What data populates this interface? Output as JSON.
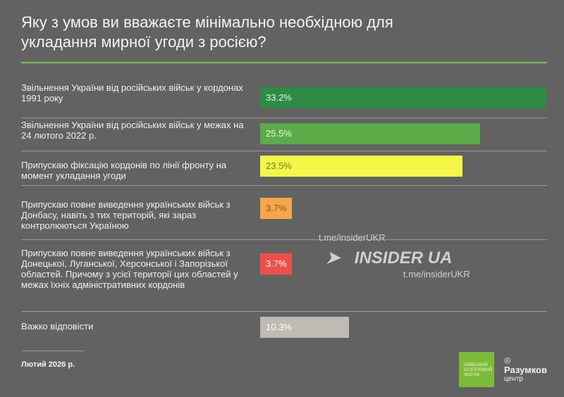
{
  "chart_data": {
    "type": "bar",
    "orientation": "horizontal",
    "title": "Яку з умов ви вважаєте мінімально необхідною для укладання мирної угоди з росією?",
    "categories": [
      "Звільнення України від російських військ у кордонах 1991 року",
      "Звільнення України від російських військ у межах на 24 лютого 2022 р.",
      "Припускаю фіксацію кордонів по лінії фронту на момент укладання угоди",
      "Припускаю повне виведення українських військ з Донбасу, навіть з тих територій, які зараз контролюються Україною",
      "Припускаю повне виведення українських військ з Донецької, Луганської, Херсонської і Запорізької областей. Причому з усієї території цих областей у межах їхніх адміністративних кордонів",
      "Важко відповісти"
    ],
    "values": [
      33.2,
      25.5,
      23.5,
      3.7,
      3.7,
      10.3
    ],
    "value_labels": [
      "33.2%",
      "25.5%",
      "23.5%",
      "3.7%",
      "3.7%",
      "10.3%"
    ],
    "colors": [
      "#2e8b45",
      "#5aac48",
      "#f4f648",
      "#f6a74c",
      "#ee5048",
      "#c0bab4"
    ],
    "value_text_colors": [
      "#e8f5e8",
      "#e8f5e8",
      "#5a8a20",
      "#8a5a20",
      "#ffffff",
      "#ffffff"
    ],
    "grid": false
  },
  "footer": {
    "date": "Лютий 2026 р."
  },
  "watermark": {
    "url": "t.me/insiderUKR",
    "brand": "INSIDER UA"
  },
  "logos": {
    "forum": "КИЇВСЬКИЙ БЕЗПЕКОВИЙ ФОРУМ",
    "razumkov": "Разумков",
    "razumkov_sub": "центр"
  },
  "accent_color": "#7dc142"
}
